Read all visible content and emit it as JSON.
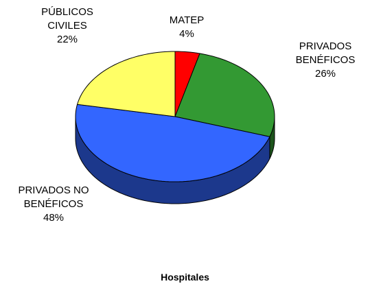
{
  "chart_data": {
    "type": "pie3d",
    "title": "Hospitales",
    "categories": [
      "MATEP",
      "PRIVADOS BENÉFICOS",
      "PRIVADOS NO BENÉFICOS",
      "PÚBLICOS CIVILES"
    ],
    "values": [
      4,
      26,
      48,
      22
    ],
    "value_labels": [
      "4%",
      "26%",
      "48%",
      "22%"
    ],
    "colors": [
      "#ff0000",
      "#339933",
      "#3366ff",
      "#ffff66"
    ]
  }
}
